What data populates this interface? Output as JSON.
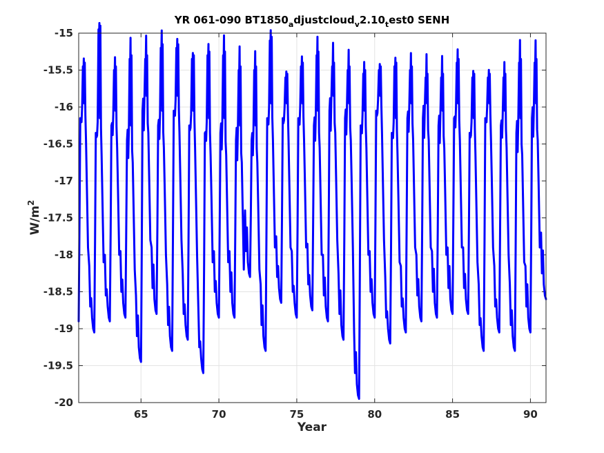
{
  "chart_data": {
    "type": "line",
    "title": {
      "parts": [
        {
          "text": "YR 061-090 BT1850",
          "sub": false
        },
        {
          "text": "a",
          "sub": true
        },
        {
          "text": "djustcloud",
          "sub": false
        },
        {
          "text": "v",
          "sub": true
        },
        {
          "text": "2.10",
          "sub": false
        },
        {
          "text": "t",
          "sub": true
        },
        {
          "text": "est0 SENH",
          "sub": false
        }
      ]
    },
    "xlabel": "Year",
    "ylabel": {
      "base": "W/m",
      "sup": "2"
    },
    "xlim": [
      61,
      91
    ],
    "ylim": [
      -20,
      -15
    ],
    "xticks": [
      65,
      70,
      75,
      80,
      85,
      90
    ],
    "xtick_labels": [
      "65",
      "70",
      "75",
      "80",
      "85",
      "90"
    ],
    "yticks": [
      -15,
      -15.5,
      -16,
      -16.5,
      -17,
      -17.5,
      -18,
      -18.5,
      -19,
      -19.5,
      -20
    ],
    "ytick_labels": [
      "-15",
      "-15.5",
      "-16",
      "-16.5",
      "-17",
      "-17.5",
      "-18",
      "-18.5",
      "-19",
      "-19.5",
      "-20"
    ],
    "grid": true,
    "series": [
      {
        "color": "#0000ff",
        "annual_cycle": {
          "start_year": 61,
          "years": 30,
          "troughs": [
            -18.9,
            -19.05,
            -18.9,
            -18.85,
            -19.45,
            -18.8,
            -19.3,
            -19.15,
            -19.6,
            -18.85,
            -18.85,
            -18.3,
            -19.3,
            -18.65,
            -18.85,
            -18.75,
            -18.9,
            -19.15,
            -19.95,
            -18.85,
            -19.2,
            -19.05,
            -18.9,
            -18.85,
            -18.8,
            -18.8,
            -19.3,
            -19.05,
            -19.3,
            -19.05
          ],
          "peaks": [
            -15.6,
            -15.1,
            -15.65,
            -15.5,
            -15.5,
            -15.35,
            -15.35,
            -15.5,
            -15.45,
            -15.45,
            -15.65,
            -15.65,
            -15.25,
            -15.75,
            -15.6,
            -15.45,
            -15.6,
            -15.65,
            -15.7,
            -15.65,
            -15.6,
            -15.65,
            -15.75,
            -15.75,
            -15.55,
            -15.75,
            -15.75,
            -15.75,
            -15.55,
            -15.55
          ],
          "plateau": [
            -16.1,
            -16.3,
            -16.2,
            -16.4,
            -16.0,
            -16.2,
            -16.0,
            -16.2,
            -16.3,
            -16.3,
            -16.4,
            -16.4,
            -16.1,
            -16.1,
            -16.1,
            -16.2,
            -16.0,
            -16.1,
            -16.2,
            -16.0,
            -16.3,
            -16.1,
            -16.1,
            -16.2,
            -16.1,
            -16.3,
            -16.1,
            -16.2,
            -16.3,
            -16.1
          ],
          "final_value": -18.6
        }
      }
    ]
  }
}
